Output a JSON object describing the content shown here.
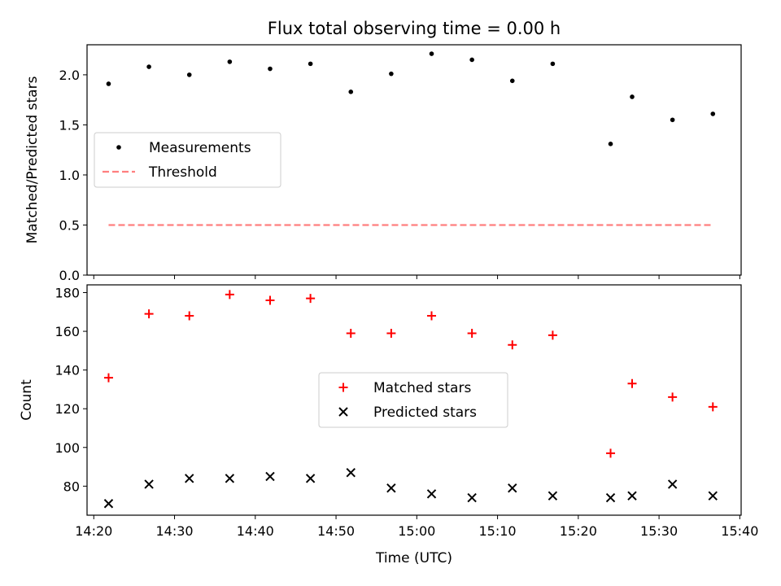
{
  "figure": {
    "title": "Flux total observing time = 0.00 h",
    "xlabel": "Time (UTC)"
  },
  "chart_data": [
    {
      "type": "scatter",
      "ylabel": "Matched/Predicted stars",
      "ylim": [
        0,
        2.3
      ],
      "yticks": [
        0.0,
        0.5,
        1.0,
        1.5,
        2.0
      ],
      "ytick_labels": [
        "0.0",
        "0.5",
        "1.0",
        "1.5",
        "2.0"
      ],
      "xlim": [
        "14:19:10",
        "15:40:10"
      ],
      "xtick_labels": [
        "14:20",
        "14:30",
        "14:40",
        "14:50",
        "15:00",
        "15:10",
        "15:20",
        "15:30",
        "15:40"
      ],
      "legend": "center-left",
      "grid": false,
      "series": [
        {
          "name": "Measurements",
          "kind": "scatter",
          "marker": "dot",
          "color": "#000000",
          "x": [
            "14:21:50",
            "14:26:50",
            "14:31:50",
            "14:36:50",
            "14:41:50",
            "14:46:50",
            "14:51:50",
            "14:56:50",
            "15:01:50",
            "15:06:50",
            "15:11:50",
            "15:16:50",
            "15:24:00",
            "15:26:40",
            "15:31:40",
            "15:36:40"
          ],
          "values": [
            1.91,
            2.08,
            2.0,
            2.13,
            2.06,
            2.11,
            1.83,
            2.01,
            2.21,
            2.15,
            1.94,
            2.11,
            1.31,
            1.78,
            1.55,
            1.61
          ]
        },
        {
          "name": "Threshold",
          "kind": "line",
          "style": "dashed",
          "color": "#ff7f7f",
          "x": [
            "14:21:50",
            "15:36:40"
          ],
          "values": [
            0.5,
            0.5
          ]
        }
      ]
    },
    {
      "type": "scatter",
      "ylabel": "Count",
      "ylim": [
        65,
        184
      ],
      "yticks": [
        80,
        100,
        120,
        140,
        160,
        180
      ],
      "ytick_labels": [
        "80",
        "100",
        "120",
        "140",
        "160",
        "180"
      ],
      "xlim": [
        "14:19:10",
        "15:40:10"
      ],
      "xtick_labels": [
        "14:20",
        "14:30",
        "14:40",
        "14:50",
        "15:00",
        "15:10",
        "15:20",
        "15:30",
        "15:40"
      ],
      "legend": "center",
      "grid": false,
      "series": [
        {
          "name": "Matched stars",
          "kind": "scatter",
          "marker": "plus",
          "color": "#ff0000",
          "x": [
            "14:21:50",
            "14:26:50",
            "14:31:50",
            "14:36:50",
            "14:41:50",
            "14:46:50",
            "14:51:50",
            "14:56:50",
            "15:01:50",
            "15:06:50",
            "15:11:50",
            "15:16:50",
            "15:24:00",
            "15:26:40",
            "15:31:40",
            "15:36:40"
          ],
          "values": [
            136,
            169,
            168,
            179,
            176,
            177,
            159,
            159,
            168,
            159,
            153,
            158,
            97,
            133,
            126,
            121
          ]
        },
        {
          "name": "Predicted stars",
          "kind": "scatter",
          "marker": "x",
          "color": "#000000",
          "x": [
            "14:21:50",
            "14:26:50",
            "14:31:50",
            "14:36:50",
            "14:41:50",
            "14:46:50",
            "14:51:50",
            "14:56:50",
            "15:01:50",
            "15:06:50",
            "15:11:50",
            "15:16:50",
            "15:24:00",
            "15:26:40",
            "15:31:40",
            "15:36:40"
          ],
          "values": [
            71,
            81,
            84,
            84,
            85,
            84,
            87,
            79,
            76,
            74,
            79,
            75,
            74,
            75,
            81,
            75
          ]
        }
      ]
    }
  ]
}
